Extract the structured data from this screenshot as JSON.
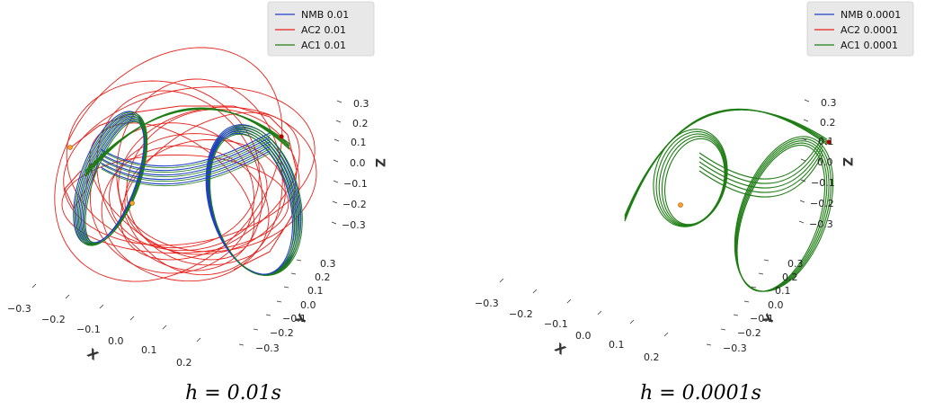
{
  "chart_data": [
    {
      "type": "line3d",
      "caption": "h = 0.01s",
      "legend_position": "top-right",
      "x_axis": {
        "label": "X",
        "ticks": [
          "−0.3",
          "−0.2",
          "−0.1",
          "0.0",
          "0.1",
          "0.2"
        ]
      },
      "y_axis": {
        "label": "Y",
        "ticks": [
          "0.3",
          "0.2",
          "0.1",
          "0.0",
          "−0.1",
          "−0.2",
          "−0.3"
        ]
      },
      "z_axis": {
        "label": "Z",
        "ticks": [
          "0.3",
          "0.2",
          "0.1",
          "0.0",
          "−0.1",
          "−0.2",
          "−0.3"
        ]
      },
      "series": [
        {
          "name": "NMB 0.01",
          "color": "#1f3fc8"
        },
        {
          "name": "AC2 0.01",
          "color": "#e8201a"
        },
        {
          "name": "AC1 0.01",
          "color": "#1e7d14"
        }
      ]
    },
    {
      "type": "line3d",
      "caption": "h = 0.0001s",
      "legend_position": "top-right",
      "x_axis": {
        "label": "X",
        "ticks": [
          "−0.3",
          "−0.2",
          "−0.1",
          "0.0",
          "0.1",
          "0.2"
        ]
      },
      "y_axis": {
        "label": "Y",
        "ticks": [
          "0.3",
          "0.2",
          "0.1",
          "0.0",
          "−0.1",
          "−0.2",
          "−0.3"
        ]
      },
      "z_axis": {
        "label": "Z",
        "ticks": [
          "0.3",
          "0.2",
          "0.1",
          "0.0",
          "−0.1",
          "−0.2",
          "−0.3"
        ]
      },
      "series": [
        {
          "name": "NMB 0.0001",
          "color": "#1f3fc8"
        },
        {
          "name": "AC2 0.0001",
          "color": "#e8201a"
        },
        {
          "name": "AC1 0.0001",
          "color": "#1e7d14"
        }
      ]
    }
  ]
}
